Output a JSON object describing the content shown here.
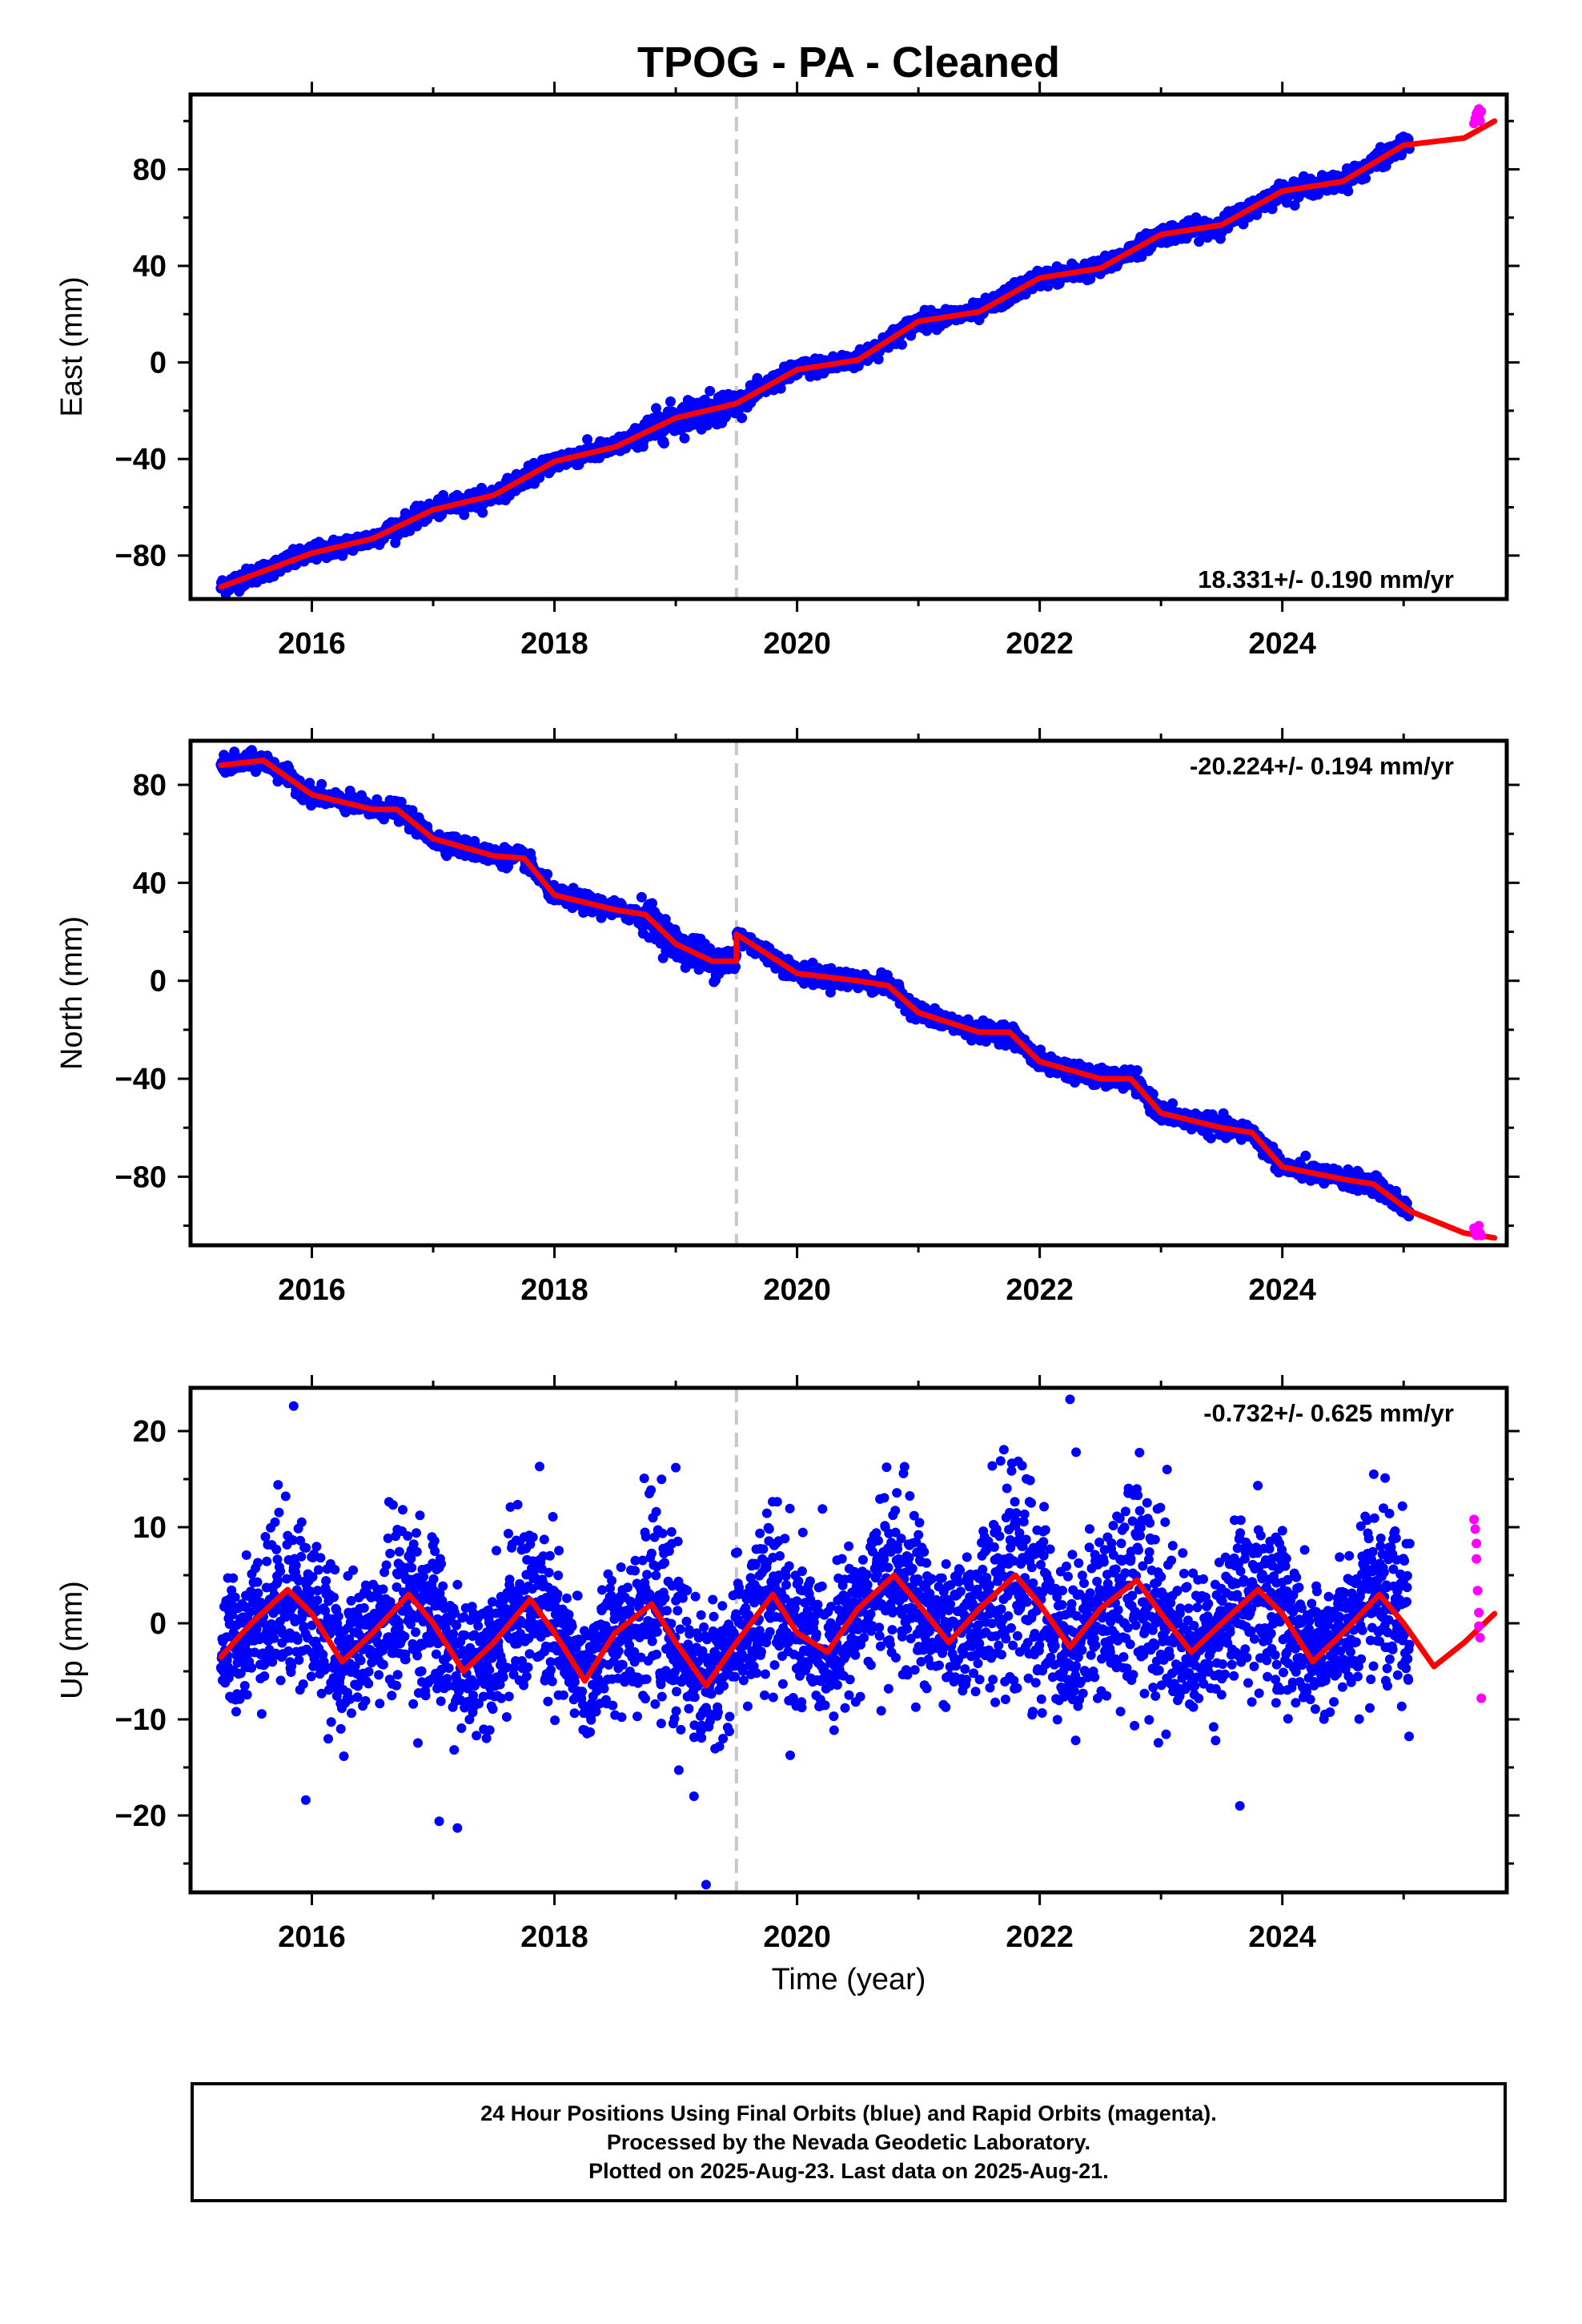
{
  "title": "TPOG  - PA - Cleaned",
  "xlabel": "Time (year)",
  "footer": {
    "line1": "24 Hour Positions Using Final Orbits (blue) and Rapid Orbits (magenta).",
    "line2": "Processed by the Nevada Geodetic Laboratory.",
    "line3": "Plotted on 2025-Aug-23. Last data on 2025-Aug-21."
  },
  "colors": {
    "final_orbits": "#0000ff",
    "rapid_orbits": "#ff00ff",
    "model": "#ff0000",
    "break_line": "#c8c8c8"
  },
  "chart_data": [
    {
      "type": "scatter",
      "ylabel": "East (mm)",
      "rate_label": "18.331+/- 0.190 mm/yr",
      "rate_position": "bottom-right",
      "xlim": [
        2015.0,
        2025.85
      ],
      "ylim": [
        -98,
        111
      ],
      "xticks": [
        2016,
        2018,
        2020,
        2022,
        2024
      ],
      "yticks": [
        -80,
        -40,
        0,
        40,
        80
      ],
      "equipment_break_year": 2019.5,
      "data_start_year": 2015.25,
      "final_orbits_end_year": 2025.05,
      "rate_mm_per_yr": 18.331,
      "noise_mm": 1.8,
      "model_line": {
        "x": [
          2015.25,
          2016.0,
          2016.5,
          2017.0,
          2017.5,
          2018.0,
          2018.5,
          2019.0,
          2019.5,
          2020.0,
          2020.5,
          2021.0,
          2021.5,
          2022.0,
          2022.5,
          2023.0,
          2023.5,
          2024.0,
          2024.5,
          2025.0,
          2025.5,
          2025.75
        ],
        "y": [
          -93,
          -79,
          -73,
          -61,
          -55,
          -41,
          -35,
          -23,
          -17,
          -3,
          1,
          17,
          21,
          35,
          39,
          53,
          57,
          71,
          75,
          90,
          93,
          100
        ]
      },
      "rapid_orbits": {
        "x": [
          2025.58,
          2025.59,
          2025.6,
          2025.61,
          2025.62,
          2025.62,
          2025.63,
          2025.64
        ],
        "y": [
          99,
          101,
          103,
          104,
          105,
          102,
          100,
          104
        ]
      }
    },
    {
      "type": "scatter",
      "ylabel": "North (mm)",
      "rate_label": "-20.224+/- 0.194 mm/yr",
      "rate_position": "top-right",
      "xlim": [
        2015.0,
        2025.85
      ],
      "ylim": [
        -108,
        98
      ],
      "xticks": [
        2016,
        2018,
        2020,
        2022,
        2024
      ],
      "yticks": [
        -80,
        -40,
        0,
        40,
        80
      ],
      "equipment_break_year": 2019.5,
      "data_start_year": 2015.25,
      "final_orbits_end_year": 2025.05,
      "rate_mm_per_yr": -20.224,
      "noise_mm": 1.8,
      "model_line": {
        "x": [
          2015.25,
          2015.6,
          2016.0,
          2016.5,
          2016.7,
          2017.0,
          2017.5,
          2017.75,
          2018.0,
          2018.5,
          2018.75,
          2019.0,
          2019.3,
          2019.5,
          2019.5,
          2020.0,
          2020.5,
          2020.75,
          2021.0,
          2021.5,
          2021.75,
          2022.0,
          2022.5,
          2022.75,
          2023.0,
          2023.5,
          2023.75,
          2024.0,
          2024.5,
          2024.75,
          2025.05,
          2025.5,
          2025.75
        ],
        "y": [
          88,
          90,
          76,
          70,
          70,
          58,
          51,
          50,
          35,
          29,
          27,
          15,
          8,
          8,
          19,
          3,
          0,
          -2,
          -13,
          -21,
          -21,
          -33,
          -40,
          -40,
          -54,
          -60,
          -62,
          -76,
          -81,
          -83,
          -94,
          -103,
          -105
        ]
      },
      "rapid_orbits": {
        "x": [
          2025.58,
          2025.59,
          2025.6,
          2025.61,
          2025.62,
          2025.63,
          2025.64
        ],
        "y": [
          -101,
          -103,
          -104,
          -102,
          -100,
          -103,
          -104
        ]
      }
    },
    {
      "type": "scatter",
      "ylabel": "Up (mm)",
      "rate_label": "-0.732+/- 0.625 mm/yr",
      "rate_position": "top-right",
      "xlim": [
        2015.0,
        2025.85
      ],
      "ylim": [
        -28,
        24.5
      ],
      "xticks": [
        2016,
        2018,
        2020,
        2022,
        2024
      ],
      "yticks": [
        -20,
        -10,
        0,
        10,
        20
      ],
      "equipment_break_year": 2019.5,
      "data_start_year": 2015.25,
      "final_orbits_end_year": 2025.05,
      "rate_mm_per_yr": -0.732,
      "noise_mm": 3.4,
      "model_line": {
        "x": [
          2015.25,
          2015.5,
          2015.8,
          2016.0,
          2016.25,
          2016.5,
          2016.8,
          2017.0,
          2017.25,
          2017.5,
          2017.8,
          2018.0,
          2018.25,
          2018.5,
          2018.8,
          2019.0,
          2019.25,
          2019.5,
          2019.8,
          2020.0,
          2020.25,
          2020.5,
          2020.8,
          2021.0,
          2021.25,
          2021.5,
          2021.8,
          2022.0,
          2022.25,
          2022.5,
          2022.8,
          2023.0,
          2023.25,
          2023.5,
          2023.8,
          2024.0,
          2024.25,
          2024.5,
          2024.8,
          2025.0,
          2025.25,
          2025.5,
          2025.75
        ],
        "y": [
          -3.5,
          0,
          3.5,
          1,
          -4,
          -1,
          3,
          0,
          -5,
          -2,
          2.5,
          -1,
          -6,
          -1,
          2,
          -2,
          -6.5,
          -2,
          3,
          -1,
          -3,
          1.5,
          5,
          2,
          -2,
          1.5,
          5,
          2,
          -2.5,
          1.5,
          4.5,
          1,
          -3,
          0,
          3.5,
          1,
          -4,
          -1,
          3,
          0,
          -4.5,
          -2,
          1
        ]
      },
      "outliers": {
        "x": [
          2015.85,
          2015.95,
          2017.05,
          2017.2,
          2019.0,
          2019.15,
          2019.25,
          2022.25,
          2022.3,
          2023.05,
          2023.45,
          2023.65
        ],
        "y": [
          22.6,
          -18.4,
          -20.6,
          -21.3,
          16.2,
          -18,
          -27.2,
          23.3,
          17.8,
          16,
          -12.2,
          -19
        ]
      },
      "rapid_orbits": {
        "x": [
          2025.58,
          2025.59,
          2025.6,
          2025.6,
          2025.61,
          2025.62,
          2025.62,
          2025.63,
          2025.64
        ],
        "y": [
          10.8,
          9.8,
          8.3,
          6.7,
          3.4,
          1.1,
          -0.3,
          -1.5,
          -7.8
        ]
      }
    }
  ]
}
